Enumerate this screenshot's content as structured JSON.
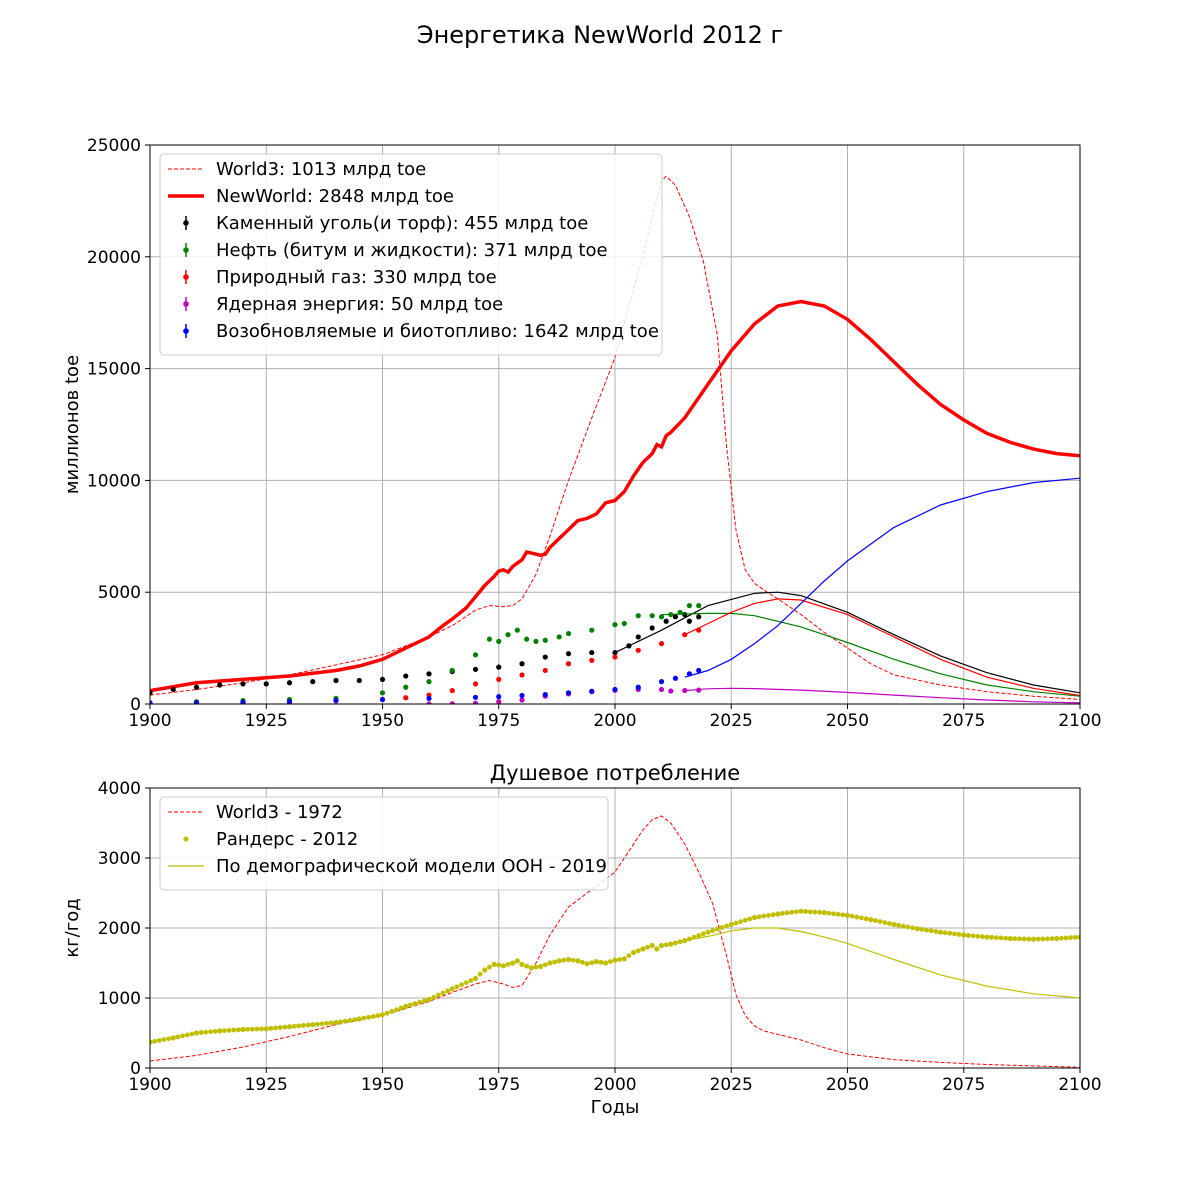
{
  "figure": {
    "suptitle": "Энергетика NewWorld 2012 г"
  },
  "chart_data": [
    {
      "type": "line",
      "title": "",
      "xlabel": "",
      "ylabel": "миллионов toe",
      "xlim": [
        1900,
        2100
      ],
      "ylim": [
        0,
        25000
      ],
      "xticks": [
        1900,
        1925,
        1950,
        1975,
        2000,
        2025,
        2050,
        2075,
        2100
      ],
      "yticks": [
        0,
        5000,
        10000,
        15000,
        20000,
        25000
      ],
      "grid": true,
      "legend_position": "top-left",
      "series": [
        {
          "name": "World3: 1013 млрд toe",
          "style": "dashed",
          "color": "#ff0000",
          "x": [
            1900,
            1910,
            1920,
            1930,
            1940,
            1950,
            1960,
            1965,
            1970,
            1973,
            1976,
            1978,
            1980,
            1983,
            1986,
            1990,
            1995,
            2000,
            2003,
            2006,
            2008,
            2010,
            2011,
            2013,
            2016,
            2019,
            2022,
            2024,
            2026,
            2028,
            2030,
            2032,
            2035,
            2040,
            2045,
            2050,
            2055,
            2060,
            2070,
            2080,
            2090,
            2100
          ],
          "y": [
            400,
            650,
            950,
            1300,
            1750,
            2200,
            3000,
            3500,
            4200,
            4400,
            4350,
            4400,
            4700,
            5800,
            7500,
            10000,
            12800,
            15500,
            17800,
            20000,
            21800,
            23400,
            23600,
            23200,
            21800,
            19800,
            16500,
            11500,
            7800,
            6000,
            5400,
            5100,
            4700,
            4000,
            3200,
            2500,
            1800,
            1300,
            850,
            550,
            350,
            200
          ]
        },
        {
          "name": "NewWorld: 2848 млрд toe",
          "style": "solid-thick",
          "color": "#ff0000",
          "x": [
            1900,
            1910,
            1920,
            1930,
            1940,
            1945,
            1950,
            1955,
            1960,
            1963,
            1965,
            1968,
            1970,
            1972,
            1974,
            1975,
            1976,
            1977,
            1978,
            1979,
            1980,
            1981,
            1982,
            1983,
            1984,
            1985,
            1986,
            1988,
            1990,
            1992,
            1994,
            1996,
            1998,
            2000,
            2002,
            2004,
            2006,
            2008,
            2009,
            2010,
            2011,
            2012,
            2015,
            2020,
            2025,
            2030,
            2035,
            2040,
            2045,
            2050,
            2055,
            2060,
            2065,
            2070,
            2075,
            2080,
            2085,
            2090,
            2095,
            2100
          ],
          "y": [
            600,
            950,
            1100,
            1250,
            1500,
            1700,
            2000,
            2500,
            3000,
            3500,
            3800,
            4300,
            4800,
            5300,
            5700,
            5950,
            6000,
            5900,
            6150,
            6300,
            6450,
            6800,
            6750,
            6700,
            6650,
            6700,
            7000,
            7400,
            7800,
            8200,
            8300,
            8500,
            9000,
            9100,
            9500,
            10200,
            10800,
            11200,
            11600,
            11500,
            12000,
            12150,
            12800,
            14300,
            15800,
            17000,
            17800,
            18000,
            17800,
            17200,
            16300,
            15300,
            14300,
            13400,
            12700,
            12100,
            11700,
            11400,
            11200,
            11100
          ]
        },
        {
          "name": "Каменный уголь(и торф): 455 млрд toe",
          "style": "markers-and-model",
          "color": "#000000",
          "hist_x": [
            1900,
            1905,
            1910,
            1915,
            1920,
            1925,
            1930,
            1935,
            1940,
            1945,
            1950,
            1955,
            1960,
            1965,
            1970,
            1975,
            1980,
            1985,
            1990,
            1995,
            2000,
            2003,
            2005,
            2008,
            2011,
            2013,
            2015,
            2016,
            2018
          ],
          "hist_y": [
            500,
            650,
            750,
            850,
            900,
            900,
            950,
            1000,
            1050,
            1050,
            1100,
            1250,
            1350,
            1450,
            1550,
            1650,
            1800,
            2100,
            2250,
            2300,
            2300,
            2600,
            3000,
            3400,
            3700,
            3900,
            4000,
            3700,
            3900
          ],
          "model_x": [
            2000,
            2010,
            2020,
            2030,
            2035,
            2040,
            2050,
            2060,
            2070,
            2080,
            2090,
            2100
          ],
          "model_y": [
            2300,
            3300,
            4400,
            4950,
            5000,
            4850,
            4100,
            3100,
            2150,
            1400,
            850,
            500
          ]
        },
        {
          "name": "Нефть (битум и жидкости): 371 млрд toe",
          "style": "markers-and-model",
          "color": "#008000",
          "hist_x": [
            1900,
            1910,
            1920,
            1930,
            1940,
            1950,
            1955,
            1960,
            1965,
            1970,
            1973,
            1975,
            1977,
            1979,
            1981,
            1983,
            1985,
            1988,
            1990,
            1995,
            2000,
            2002,
            2005,
            2008,
            2010,
            2012,
            2014,
            2016,
            2018
          ],
          "hist_y": [
            50,
            100,
            150,
            200,
            250,
            500,
            750,
            1000,
            1500,
            2200,
            2900,
            2800,
            3100,
            3300,
            2900,
            2800,
            2850,
            3000,
            3150,
            3300,
            3550,
            3600,
            3950,
            3950,
            3900,
            4000,
            4100,
            4400,
            4400
          ],
          "model_x": [
            2010,
            2020,
            2025,
            2030,
            2040,
            2050,
            2060,
            2070,
            2080,
            2090,
            2100
          ],
          "model_y": [
            4000,
            4050,
            4050,
            3950,
            3450,
            2750,
            2000,
            1350,
            850,
            550,
            350
          ]
        },
        {
          "name": "Природный газ: 330 млрд toe",
          "style": "markers-and-model",
          "color": "#ff0000",
          "hist_x": [
            1900,
            1910,
            1920,
            1930,
            1940,
            1950,
            1955,
            1960,
            1965,
            1970,
            1975,
            1980,
            1985,
            1990,
            1995,
            2000,
            2005,
            2010,
            2015,
            2018
          ],
          "hist_y": [
            10,
            20,
            50,
            80,
            150,
            200,
            280,
            400,
            600,
            900,
            1100,
            1300,
            1500,
            1800,
            1950,
            2100,
            2400,
            2700,
            3100,
            3300
          ],
          "model_x": [
            2015,
            2020,
            2025,
            2030,
            2035,
            2040,
            2050,
            2060,
            2070,
            2080,
            2090,
            2100
          ],
          "model_y": [
            3100,
            3600,
            4100,
            4500,
            4700,
            4650,
            4000,
            3000,
            2000,
            1200,
            700,
            380
          ]
        },
        {
          "name": "Ядерная энергия: 50 млрд toe",
          "style": "markers-and-model",
          "color": "#bf00bf",
          "hist_x": [
            1960,
            1965,
            1970,
            1975,
            1980,
            1985,
            1990,
            1995,
            2000,
            2005,
            2010,
            2012,
            2015,
            2018
          ],
          "hist_y": [
            0,
            10,
            30,
            100,
            180,
            350,
            450,
            550,
            620,
            650,
            650,
            580,
            600,
            620
          ],
          "model_x": [
            2015,
            2020,
            2025,
            2030,
            2040,
            2050,
            2060,
            2070,
            2080,
            2090,
            2100
          ],
          "model_y": [
            600,
            680,
            700,
            690,
            620,
            520,
            400,
            280,
            180,
            100,
            50
          ]
        },
        {
          "name": "Возобновляемые и биотопливо: 1642 млрд toe",
          "style": "markers-and-model",
          "color": "#0000ff",
          "hist_x": [
            1900,
            1910,
            1920,
            1930,
            1940,
            1950,
            1960,
            1970,
            1975,
            1980,
            1985,
            1990,
            1995,
            2000,
            2005,
            2010,
            2013,
            2016,
            2018
          ],
          "hist_y": [
            50,
            60,
            80,
            100,
            150,
            200,
            250,
            300,
            330,
            380,
            420,
            500,
            570,
            650,
            750,
            1000,
            1150,
            1350,
            1500
          ],
          "model_x": [
            2015,
            2020,
            2025,
            2030,
            2035,
            2040,
            2045,
            2050,
            2060,
            2070,
            2080,
            2090,
            2100
          ],
          "model_y": [
            1200,
            1500,
            2000,
            2700,
            3500,
            4500,
            5500,
            6400,
            7900,
            8900,
            9500,
            9900,
            10100
          ]
        }
      ]
    },
    {
      "type": "line",
      "title": "Душевое потребление",
      "xlabel": "Годы",
      "ylabel": "кг/год",
      "xlim": [
        1900,
        2100
      ],
      "ylim": [
        0,
        4000
      ],
      "xticks": [
        1900,
        1925,
        1950,
        1975,
        2000,
        2025,
        2050,
        2075,
        2100
      ],
      "yticks": [
        0,
        1000,
        2000,
        3000,
        4000
      ],
      "grid": true,
      "legend_position": "top-left",
      "series": [
        {
          "name": "World3 - 1972",
          "style": "dashed",
          "color": "#ff0000",
          "x": [
            1900,
            1910,
            1920,
            1930,
            1940,
            1950,
            1960,
            1965,
            1970,
            1973,
            1976,
            1978,
            1980,
            1983,
            1986,
            1990,
            1995,
            2000,
            2003,
            2006,
            2008,
            2010,
            2012,
            2015,
            2018,
            2021,
            2024,
            2026,
            2028,
            2030,
            2032,
            2035,
            2040,
            2045,
            2050,
            2060,
            2070,
            2080,
            2090,
            2100
          ],
          "y": [
            100,
            180,
            300,
            450,
            620,
            750,
            950,
            1080,
            1200,
            1250,
            1200,
            1150,
            1180,
            1500,
            1900,
            2300,
            2550,
            2800,
            3100,
            3400,
            3550,
            3600,
            3500,
            3200,
            2800,
            2350,
            1600,
            1050,
            750,
            600,
            530,
            480,
            400,
            290,
            200,
            120,
            80,
            50,
            30,
            10
          ]
        },
        {
          "name": "Рандерс - 2012",
          "style": "markers",
          "color": "#bfbf00",
          "x": [
            1900,
            1905,
            1910,
            1915,
            1920,
            1925,
            1930,
            1935,
            1940,
            1945,
            1950,
            1955,
            1960,
            1965,
            1970,
            1972,
            1974,
            1976,
            1978,
            1979,
            1980,
            1982,
            1984,
            1986,
            1988,
            1990,
            1992,
            1994,
            1996,
            1998,
            2000,
            2002,
            2004,
            2006,
            2008,
            2009,
            2010,
            2012,
            2015,
            2020,
            2025,
            2030,
            2035,
            2040,
            2045,
            2050,
            2055,
            2060,
            2065,
            2070,
            2075,
            2080,
            2085,
            2090,
            2095,
            2100
          ],
          "y": [
            370,
            430,
            500,
            530,
            550,
            560,
            590,
            620,
            650,
            700,
            760,
            880,
            980,
            1130,
            1280,
            1400,
            1480,
            1460,
            1500,
            1530,
            1480,
            1430,
            1450,
            1500,
            1530,
            1550,
            1530,
            1490,
            1520,
            1500,
            1540,
            1560,
            1650,
            1700,
            1750,
            1700,
            1750,
            1770,
            1820,
            1940,
            2050,
            2150,
            2200,
            2240,
            2220,
            2180,
            2120,
            2050,
            1990,
            1940,
            1900,
            1870,
            1850,
            1840,
            1850,
            1870
          ]
        },
        {
          "name": "По демографической модели ООН - 2019",
          "style": "solid",
          "color": "#bfbf00",
          "x": [
            2012,
            2015,
            2020,
            2025,
            2030,
            2035,
            2040,
            2045,
            2050,
            2060,
            2070,
            2080,
            2090,
            2100
          ],
          "y": [
            1770,
            1820,
            1880,
            1960,
            2000,
            2000,
            1950,
            1870,
            1780,
            1550,
            1330,
            1170,
            1060,
            1000
          ]
        }
      ]
    }
  ]
}
